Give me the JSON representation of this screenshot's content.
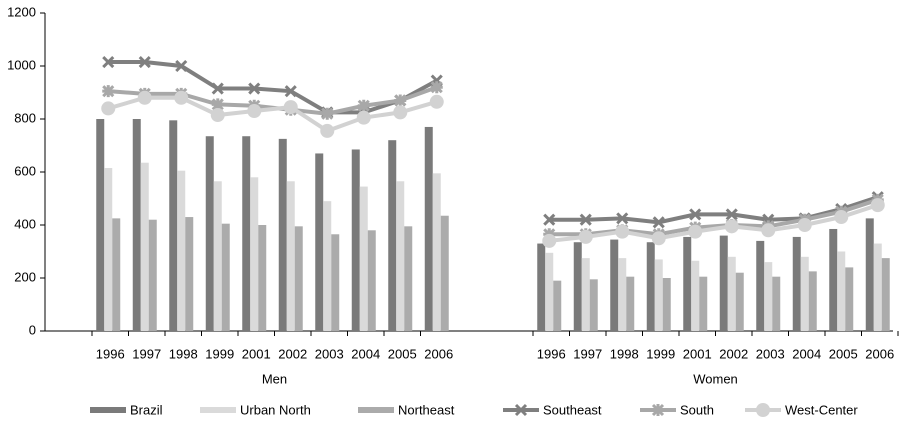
{
  "chart_data": {
    "type": "bar",
    "groups": [
      "Men",
      "Women"
    ],
    "categories": [
      "1996",
      "1997",
      "1998",
      "1999",
      "2001",
      "2002",
      "2003",
      "2004",
      "2005",
      "2006",
      "1996",
      "1997",
      "1998",
      "1999",
      "2001",
      "2002",
      "2003",
      "2004",
      "2005",
      "2006"
    ],
    "ylim": [
      0,
      1200
    ],
    "yticks": [
      0,
      200,
      400,
      600,
      800,
      1000,
      1200
    ],
    "series": [
      {
        "name": "Brazil",
        "type": "bar",
        "color": "#7a7a7a",
        "values": [
          800,
          800,
          795,
          735,
          735,
          725,
          670,
          685,
          720,
          770,
          330,
          335,
          345,
          335,
          355,
          360,
          340,
          355,
          385,
          425
        ]
      },
      {
        "name": "Urban North",
        "type": "bar",
        "color": "#dadada",
        "values": [
          615,
          635,
          605,
          565,
          580,
          565,
          490,
          545,
          565,
          595,
          295,
          275,
          275,
          270,
          265,
          280,
          260,
          280,
          300,
          330
        ]
      },
      {
        "name": "Northeast",
        "type": "bar",
        "color": "#ababab",
        "values": [
          425,
          420,
          430,
          405,
          400,
          395,
          365,
          380,
          395,
          435,
          190,
          195,
          205,
          200,
          205,
          220,
          205,
          225,
          240,
          275
        ]
      },
      {
        "name": "Southeast",
        "type": "line",
        "marker": "x",
        "color": "#7f7f7f",
        "values": [
          1015,
          1015,
          1000,
          915,
          915,
          905,
          825,
          825,
          870,
          945,
          420,
          420,
          425,
          410,
          440,
          440,
          420,
          425,
          460,
          505
        ]
      },
      {
        "name": "South",
        "type": "line",
        "marker": "star",
        "color": "#a8a8a8",
        "values": [
          905,
          895,
          895,
          855,
          850,
          835,
          820,
          850,
          870,
          920,
          365,
          365,
          380,
          365,
          390,
          400,
          395,
          420,
          450,
          495
        ]
      },
      {
        "name": "West-Center",
        "type": "line",
        "marker": "circle",
        "color": "#d2d2d2",
        "values": [
          840,
          880,
          880,
          815,
          830,
          845,
          755,
          805,
          825,
          865,
          340,
          355,
          375,
          350,
          375,
          395,
          380,
          400,
          430,
          475
        ]
      }
    ]
  }
}
